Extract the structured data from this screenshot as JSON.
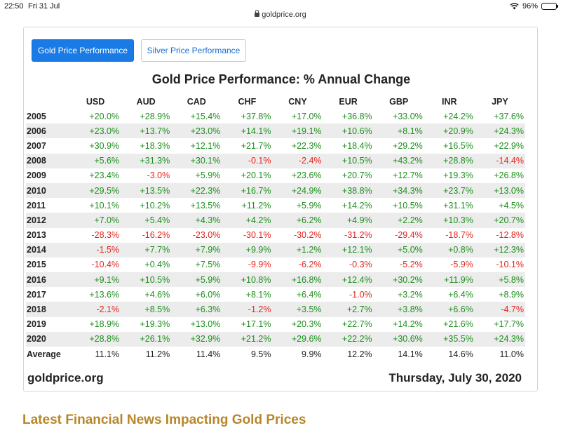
{
  "status_bar": {
    "time": "22:50",
    "date": "Fri 31 Jul",
    "battery": "96%",
    "url": "goldprice.org"
  },
  "tabs": {
    "gold_label": "Gold Price Performance",
    "silver_label": "Silver Price Performance"
  },
  "table": {
    "title": "Gold Price Performance: % Annual Change",
    "columns": [
      "USD",
      "AUD",
      "CAD",
      "CHF",
      "CNY",
      "EUR",
      "GBP",
      "INR",
      "JPY"
    ],
    "rows": [
      {
        "year": "2005",
        "values": [
          "+20.0%",
          "+28.9%",
          "+15.4%",
          "+37.8%",
          "+17.0%",
          "+36.8%",
          "+33.0%",
          "+24.2%",
          "+37.6%"
        ]
      },
      {
        "year": "2006",
        "values": [
          "+23.0%",
          "+13.7%",
          "+23.0%",
          "+14.1%",
          "+19.1%",
          "+10.6%",
          "+8.1%",
          "+20.9%",
          "+24.3%"
        ]
      },
      {
        "year": "2007",
        "values": [
          "+30.9%",
          "+18.3%",
          "+12.1%",
          "+21.7%",
          "+22.3%",
          "+18.4%",
          "+29.2%",
          "+16.5%",
          "+22.9%"
        ]
      },
      {
        "year": "2008",
        "values": [
          "+5.6%",
          "+31.3%",
          "+30.1%",
          "-0.1%",
          "-2.4%",
          "+10.5%",
          "+43.2%",
          "+28.8%",
          "-14.4%"
        ]
      },
      {
        "year": "2009",
        "values": [
          "+23.4%",
          "-3.0%",
          "+5.9%",
          "+20.1%",
          "+23.6%",
          "+20.7%",
          "+12.7%",
          "+19.3%",
          "+26.8%"
        ]
      },
      {
        "year": "2010",
        "values": [
          "+29.5%",
          "+13.5%",
          "+22.3%",
          "+16.7%",
          "+24.9%",
          "+38.8%",
          "+34.3%",
          "+23.7%",
          "+13.0%"
        ]
      },
      {
        "year": "2011",
        "values": [
          "+10.1%",
          "+10.2%",
          "+13.5%",
          "+11.2%",
          "+5.9%",
          "+14.2%",
          "+10.5%",
          "+31.1%",
          "+4.5%"
        ]
      },
      {
        "year": "2012",
        "values": [
          "+7.0%",
          "+5.4%",
          "+4.3%",
          "+4.2%",
          "+6.2%",
          "+4.9%",
          "+2.2%",
          "+10.3%",
          "+20.7%"
        ]
      },
      {
        "year": "2013",
        "values": [
          "-28.3%",
          "-16.2%",
          "-23.0%",
          "-30.1%",
          "-30.2%",
          "-31.2%",
          "-29.4%",
          "-18.7%",
          "-12.8%"
        ]
      },
      {
        "year": "2014",
        "values": [
          "-1.5%",
          "+7.7%",
          "+7.9%",
          "+9.9%",
          "+1.2%",
          "+12.1%",
          "+5.0%",
          "+0.8%",
          "+12.3%"
        ]
      },
      {
        "year": "2015",
        "values": [
          "-10.4%",
          "+0.4%",
          "+7.5%",
          "-9.9%",
          "-6.2%",
          "-0.3%",
          "-5.2%",
          "-5.9%",
          "-10.1%"
        ]
      },
      {
        "year": "2016",
        "values": [
          "+9.1%",
          "+10.5%",
          "+5.9%",
          "+10.8%",
          "+16.8%",
          "+12.4%",
          "+30.2%",
          "+11.9%",
          "+5.8%"
        ]
      },
      {
        "year": "2017",
        "values": [
          "+13.6%",
          "+4.6%",
          "+6.0%",
          "+8.1%",
          "+6.4%",
          "-1.0%",
          "+3.2%",
          "+6.4%",
          "+8.9%"
        ]
      },
      {
        "year": "2018",
        "values": [
          "-2.1%",
          "+8.5%",
          "+6.3%",
          "-1.2%",
          "+3.5%",
          "+2.7%",
          "+3.8%",
          "+6.6%",
          "-4.7%"
        ]
      },
      {
        "year": "2019",
        "values": [
          "+18.9%",
          "+19.3%",
          "+13.0%",
          "+17.1%",
          "+20.3%",
          "+22.7%",
          "+14.2%",
          "+21.6%",
          "+17.7%"
        ]
      },
      {
        "year": "2020",
        "values": [
          "+28.8%",
          "+26.1%",
          "+32.9%",
          "+21.2%",
          "+29.6%",
          "+22.2%",
          "+30.6%",
          "+35.5%",
          "+24.3%"
        ]
      }
    ],
    "average": {
      "label": "Average",
      "values": [
        "11.1%",
        "11.2%",
        "11.4%",
        "9.5%",
        "9.9%",
        "12.2%",
        "14.1%",
        "14.6%",
        "11.0%"
      ]
    }
  },
  "footer": {
    "site": "goldprice.org",
    "date": "Thursday, July 30, 2020"
  },
  "news_heading": "Latest Financial News Impacting Gold Prices",
  "colors": {
    "positive": "#1e8f1e",
    "negative": "#e3261f",
    "accent": "#1a7be6",
    "heading_gold": "#b8862a"
  }
}
